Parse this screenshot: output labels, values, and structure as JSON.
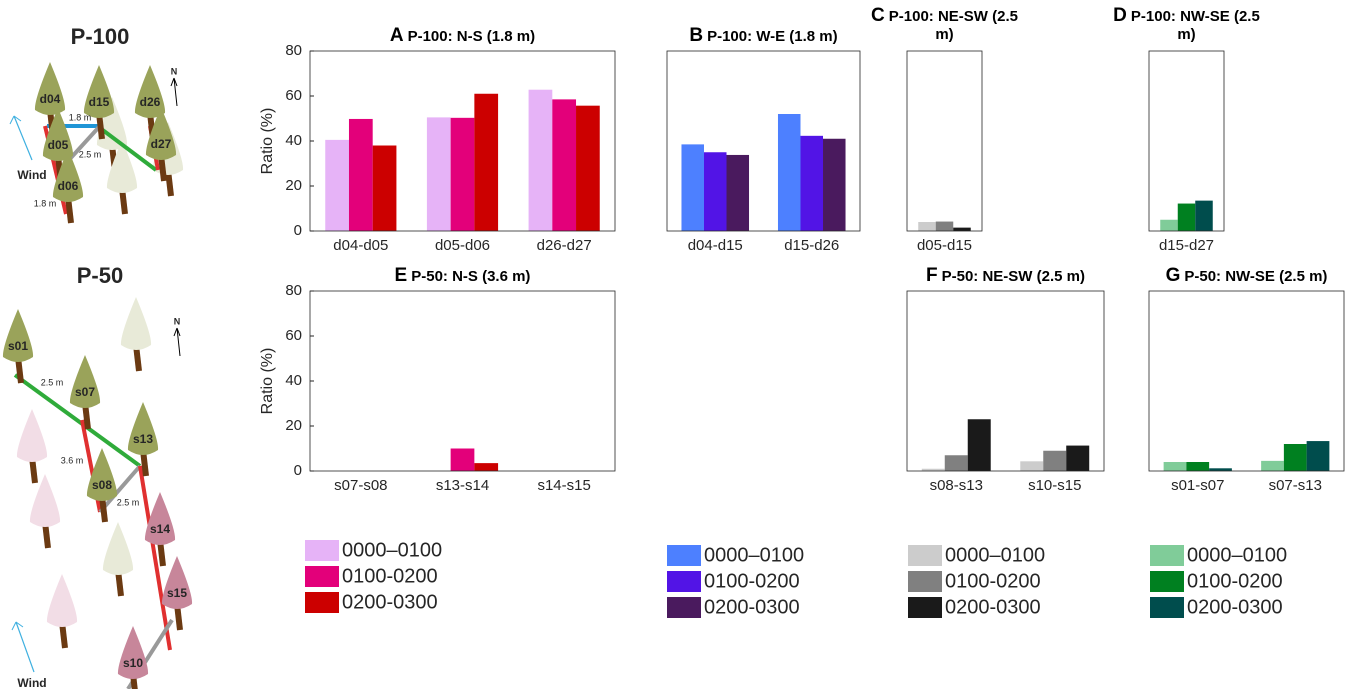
{
  "chart_data": [
    {
      "type": "bar",
      "panel": "A",
      "title": "P-100: N-S (1.8 m)",
      "ylabel": "Ratio (%)",
      "categories": [
        "d04-d05",
        "d05-d06",
        "d26-d27"
      ],
      "series": [
        {
          "name": "0000–0100",
          "color": "#e6b3f7",
          "values": [
            40.5,
            50.5,
            62.8
          ]
        },
        {
          "name": "0100-0200",
          "color": "#e3007a",
          "values": [
            49.8,
            50.3,
            58.5
          ]
        },
        {
          "name": "0200-0300",
          "color": "#cc0000",
          "values": [
            38,
            61,
            55.7
          ]
        }
      ],
      "ylim": [
        0,
        80
      ],
      "yticks": [
        0,
        20,
        40,
        60,
        80
      ],
      "legend": true
    },
    {
      "type": "bar",
      "panel": "B",
      "title": "P-100: W-E (1.8 m)",
      "categories": [
        "d04-d15",
        "d15-d26"
      ],
      "series": [
        {
          "name": "0000–0100",
          "color": "#4d80ff",
          "values": [
            38.5,
            52
          ]
        },
        {
          "name": "0100-0200",
          "color": "#5214e6",
          "values": [
            35,
            42.3
          ]
        },
        {
          "name": "0200-0300",
          "color": "#4a1a5e",
          "values": [
            33.8,
            41
          ]
        }
      ],
      "ylim": [
        0,
        80
      ],
      "legend": true
    },
    {
      "type": "bar",
      "panel": "C",
      "title": "P-100: NE-SW (2.5 m)",
      "categories": [
        "d05-d15"
      ],
      "series": [
        {
          "name": "0000–0100",
          "color": "#cccccc",
          "values": [
            4
          ]
        },
        {
          "name": "0100-0200",
          "color": "#808080",
          "values": [
            4.2
          ]
        },
        {
          "name": "0200-0300",
          "color": "#1a1a1a",
          "values": [
            1.5
          ]
        }
      ],
      "ylim": [
        0,
        80
      ],
      "legend": true
    },
    {
      "type": "bar",
      "panel": "D",
      "title": "P-100: NW-SE (2.5 m)",
      "categories": [
        "d15-d27"
      ],
      "series": [
        {
          "name": "0000–0100",
          "color": "#80cc99",
          "values": [
            5
          ]
        },
        {
          "name": "0100-0200",
          "color": "#008020",
          "values": [
            12.2
          ]
        },
        {
          "name": "0200-0300",
          "color": "#004d4d",
          "values": [
            13.5
          ]
        }
      ],
      "ylim": [
        0,
        80
      ],
      "legend": true
    },
    {
      "type": "bar",
      "panel": "E",
      "title": "P-50: N-S (3.6 m)",
      "ylabel": "Ratio (%)",
      "categories": [
        "s07-s08",
        "s13-s14",
        "s14-s15"
      ],
      "series": [
        {
          "color": "#e6b3f7",
          "values": [
            0,
            0,
            0
          ]
        },
        {
          "color": "#e3007a",
          "values": [
            0,
            10,
            0
          ]
        },
        {
          "color": "#cc0000",
          "values": [
            0,
            3.5,
            0
          ]
        }
      ],
      "ylim": [
        0,
        80
      ],
      "yticks": [
        0,
        20,
        40,
        60,
        80
      ]
    },
    {
      "type": "bar",
      "panel": "F",
      "title": "P-50: NE-SW (2.5 m)",
      "categories": [
        "s08-s13",
        "s10-s15"
      ],
      "series": [
        {
          "color": "#cccccc",
          "values": [
            1,
            4.3
          ]
        },
        {
          "color": "#808080",
          "values": [
            7,
            9
          ]
        },
        {
          "color": "#1a1a1a",
          "values": [
            23,
            11.3
          ]
        }
      ],
      "ylim": [
        0,
        80
      ]
    },
    {
      "type": "bar",
      "panel": "G",
      "title": "P-50: NW-SE (2.5 m)",
      "categories": [
        "s01-s07",
        "s07-s13"
      ],
      "series": [
        {
          "color": "#80cc99",
          "values": [
            4,
            4.5
          ]
        },
        {
          "color": "#008020",
          "values": [
            4,
            12
          ]
        },
        {
          "color": "#004d4d",
          "values": [
            1.2,
            13.3
          ]
        }
      ],
      "ylim": [
        0,
        80
      ]
    }
  ],
  "diagrams": [
    {
      "title": "P-100",
      "north": "N",
      "wind": "Wind",
      "trees": [
        "d04",
        "d15",
        "d26",
        "d05",
        "d27",
        "d06"
      ],
      "distances": [
        "1.8 m",
        "2.5 m",
        "1.8 m"
      ]
    },
    {
      "title": "P-50",
      "north": "N",
      "wind": "Wind",
      "trees": [
        "s01",
        "s07",
        "s13",
        "s08",
        "s14",
        "s15",
        "s10"
      ],
      "distances": [
        "2.5 m",
        "3.6 m",
        "2.5 m"
      ]
    }
  ]
}
